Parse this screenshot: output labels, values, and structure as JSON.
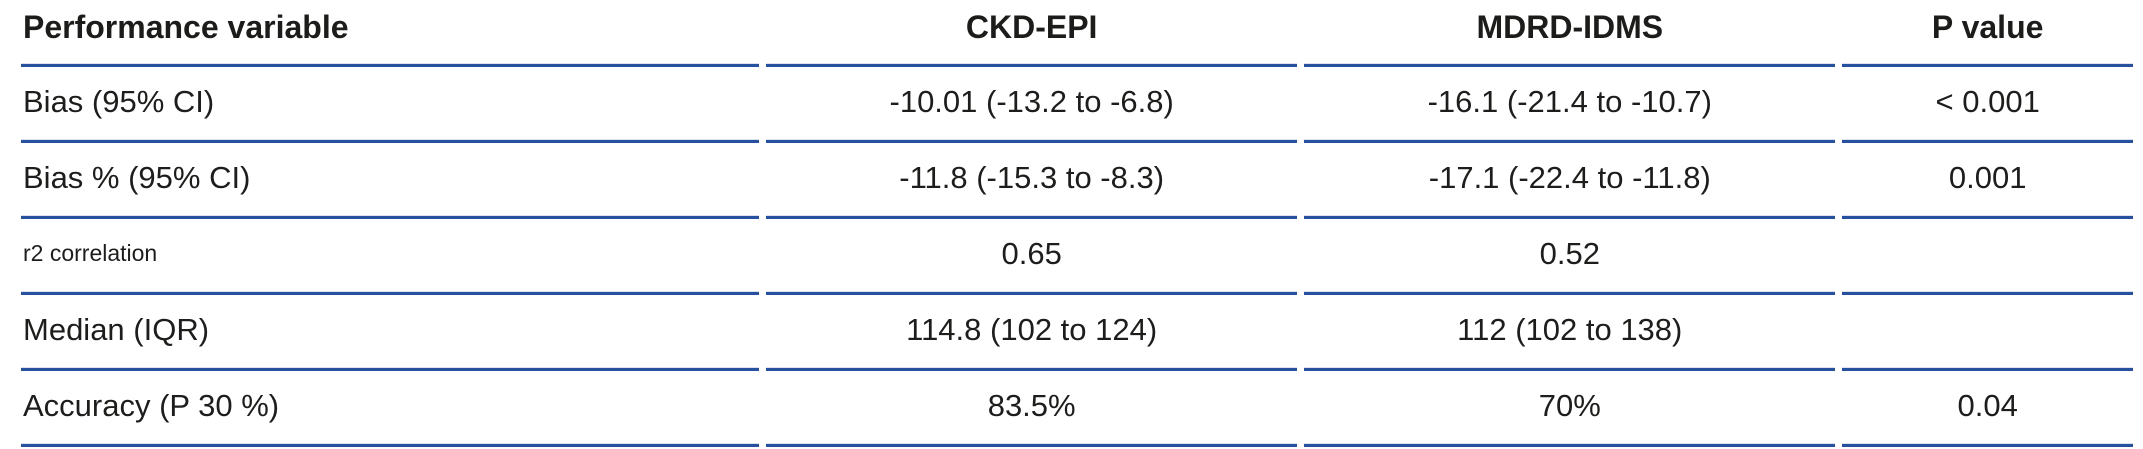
{
  "colors": {
    "rule_blue": "#27519E",
    "text": "#1d1d1b"
  },
  "table": {
    "columns": [
      {
        "label": "Performance variable",
        "align": "left"
      },
      {
        "label": "CKD-EPI",
        "align": "center"
      },
      {
        "label": "MDRD-IDMS",
        "align": "center"
      },
      {
        "label": "P value",
        "align": "center"
      }
    ],
    "rows": [
      {
        "variable": "Bias (95% CI)",
        "ckd_epi": "-10.01 (-13.2 to -6.8)",
        "mdrd_idms": "-16.1 (-21.4 to -10.7)",
        "p_value": "< 0.001",
        "small_label": false
      },
      {
        "variable": "Bias % (95% CI)",
        "ckd_epi": "-11.8 (-15.3 to -8.3)",
        "mdrd_idms": "-17.1 (-22.4 to -11.8)",
        "p_value": "0.001",
        "small_label": false
      },
      {
        "variable": "r2 correlation",
        "ckd_epi": "0.65",
        "mdrd_idms": "0.52",
        "p_value": "",
        "small_label": true
      },
      {
        "variable": "Median (IQR)",
        "ckd_epi": "114.8 (102 to 124)",
        "mdrd_idms": "112 (102 to 138)",
        "p_value": "",
        "small_label": false
      },
      {
        "variable": "Accuracy (P 30 %)",
        "ckd_epi": "83.5%",
        "mdrd_idms": "70%",
        "p_value": "0.04",
        "small_label": false
      }
    ]
  }
}
